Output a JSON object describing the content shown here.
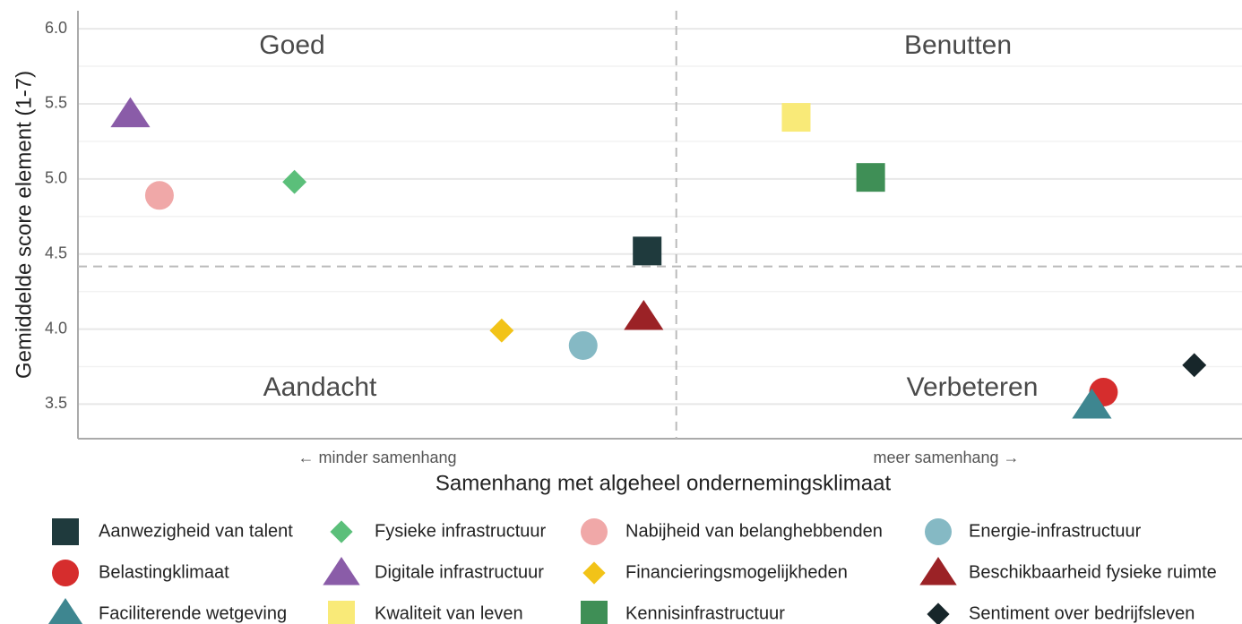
{
  "chart_data": {
    "type": "scatter",
    "ylabel": "Gemiddelde score element (1-7)",
    "xlabel": "Samenhang met algeheel ondernemingsklimaat",
    "x_left_note": "← minder samenhang",
    "x_right_note": "meer samenhang →",
    "annotations": [
      "Goed",
      "Benutten",
      "Aandacht",
      "Verbeteren"
    ],
    "xlim": [
      0,
      1
    ],
    "ylim": [
      3.27,
      6.12
    ],
    "yticks": [
      3.5,
      {
        "value": 4,
        "label": "4.0"
      },
      4.5,
      {
        "value": 5,
        "label": "5.0"
      },
      5.5,
      {
        "value": 6,
        "label": "6.0"
      }
    ],
    "minor_grid": [
      3.75,
      4.25,
      4.75,
      5.25,
      5.75
    ],
    "grid": true,
    "vline": 0.514,
    "hline": 4.417,
    "legend": "bottom",
    "series": [
      {
        "name": "Aanwezigheid van talent",
        "color": "#1f3a3d",
        "marker": "square",
        "x": [
          0.489
        ],
        "values": [
          4.52
        ]
      },
      {
        "name": "Fysieke infrastructuur",
        "color": "#5bbf7a",
        "marker": "diamond",
        "x": [
          0.186
        ],
        "values": [
          4.98
        ]
      },
      {
        "name": "Nabijheid van belanghebbenden",
        "color": "#f0a8a8",
        "marker": "circle",
        "x": [
          0.07
        ],
        "values": [
          4.89
        ]
      },
      {
        "name": "Energie-infrastructuur",
        "color": "#85b9c4",
        "marker": "circle",
        "x": [
          0.434
        ],
        "values": [
          3.89
        ]
      },
      {
        "name": "Belastingklimaat",
        "color": "#d62d2d",
        "marker": "circle",
        "x": [
          0.881
        ],
        "values": [
          3.58
        ]
      },
      {
        "name": "Digitale infrastructuur",
        "color": "#8a5ca8",
        "marker": "triangle",
        "x": [
          0.045
        ],
        "values": [
          5.43
        ]
      },
      {
        "name": "Financieringsmogelijkheden",
        "color": "#f2c318",
        "marker": "diamond",
        "x": [
          0.364
        ],
        "values": [
          3.99
        ]
      },
      {
        "name": "Beschikbaarheid fysieke ruimte",
        "color": "#9b2226",
        "marker": "triangle",
        "x": [
          0.486
        ],
        "values": [
          4.08
        ]
      },
      {
        "name": "Faciliterende wetgeving",
        "color": "#3e8690",
        "marker": "triangle",
        "x": [
          0.871
        ],
        "values": [
          3.49
        ]
      },
      {
        "name": "Kwaliteit van leven",
        "color": "#f9ea78",
        "marker": "square",
        "x": [
          0.617
        ],
        "values": [
          5.41
        ]
      },
      {
        "name": "Kennisinfrastructuur",
        "color": "#3f8f56",
        "marker": "square",
        "x": [
          0.681
        ],
        "values": [
          5.01
        ]
      },
      {
        "name": "Sentiment over bedrijfsleven",
        "color": "#17262a",
        "marker": "diamond",
        "x": [
          0.959
        ],
        "values": [
          3.76
        ]
      }
    ]
  }
}
